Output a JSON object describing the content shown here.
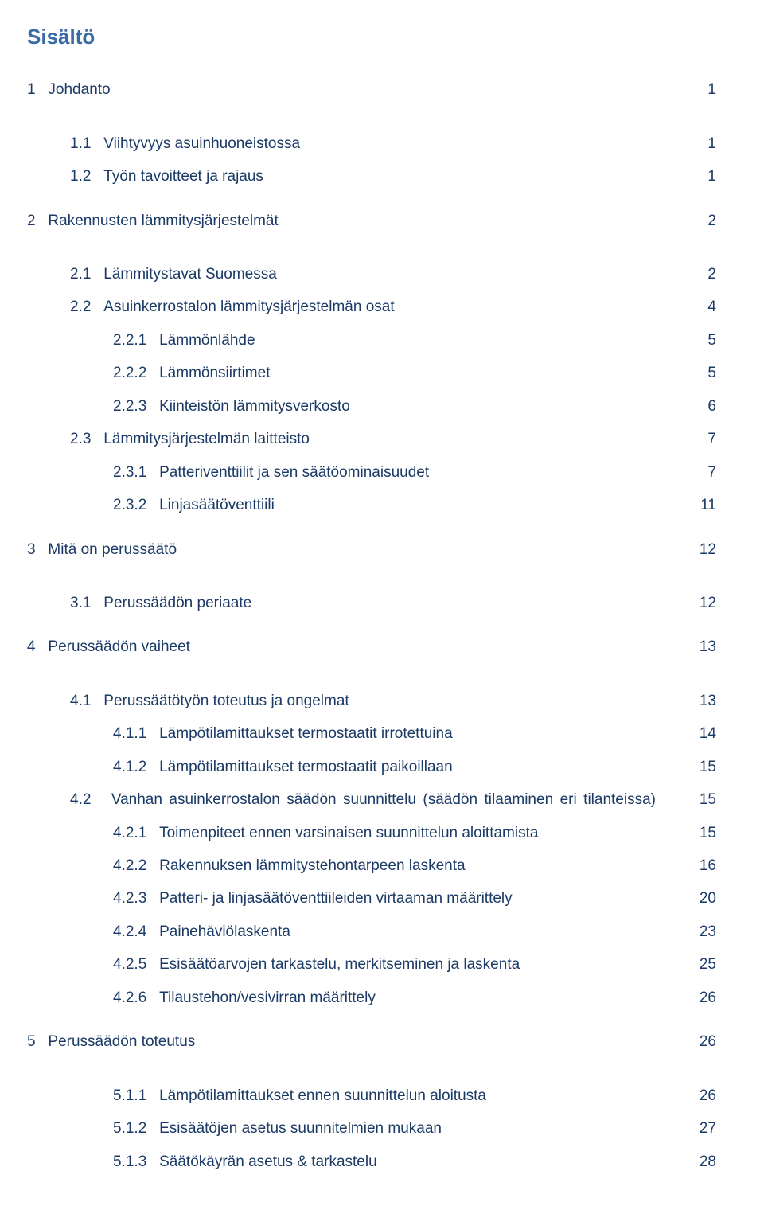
{
  "colors": {
    "title": "#3b6ba5",
    "text": "#1b3a66",
    "background": "#ffffff"
  },
  "title": "Sisältö",
  "toc": [
    {
      "level": 1,
      "num": "1",
      "text": "Johdanto",
      "page": "1",
      "gap": "lg"
    },
    {
      "level": 2,
      "num": "1.1",
      "text": "Viihtyvyys asuinhuoneistossa",
      "page": "1",
      "gap": "lg"
    },
    {
      "level": 2,
      "num": "1.2",
      "text": "Työn tavoitteet ja rajaus",
      "page": "1"
    },
    {
      "level": 1,
      "num": "2",
      "text": "Rakennusten lämmitysjärjestelmät",
      "page": "2",
      "gap": "md"
    },
    {
      "level": 2,
      "num": "2.1",
      "text": "Lämmitystavat Suomessa",
      "page": "2",
      "gap": "lg"
    },
    {
      "level": 2,
      "num": "2.2",
      "text": "Asuinkerrostalon lämmitysjärjestelmän osat",
      "page": "4"
    },
    {
      "level": 3,
      "num": "2.2.1",
      "text": "Lämmönlähde",
      "page": "5"
    },
    {
      "level": 3,
      "num": "2.2.2",
      "text": "Lämmönsiirtimet",
      "page": "5"
    },
    {
      "level": 3,
      "num": "2.2.3",
      "text": "Kiinteistön lämmitysverkosto",
      "page": "6"
    },
    {
      "level": 2,
      "num": "2.3",
      "text": "Lämmitysjärjestelmän laitteisto",
      "page": "7"
    },
    {
      "level": 3,
      "num": "2.3.1",
      "text": "Patteriventtiilit ja sen säätöominaisuudet",
      "page": "7"
    },
    {
      "level": 3,
      "num": "2.3.2",
      "text": "Linjasäätöventtiili",
      "page": "11"
    },
    {
      "level": 1,
      "num": "3",
      "text": "Mitä on perussäätö",
      "page": "12",
      "gap": "md"
    },
    {
      "level": 2,
      "num": "3.1",
      "text": "Perussäädön periaate",
      "page": "12",
      "gap": "lg"
    },
    {
      "level": 1,
      "num": "4",
      "text": "Perussäädön vaiheet",
      "page": "13",
      "gap": "md"
    },
    {
      "level": 2,
      "num": "4.1",
      "text": "Perussäätötyön toteutus ja ongelmat",
      "page": "13",
      "gap": "lg"
    },
    {
      "level": 3,
      "num": "4.1.1",
      "text": "Lämpötilamittaukset termostaatit irrotettuina",
      "page": "14"
    },
    {
      "level": 3,
      "num": "4.1.2",
      "text": "Lämpötilamittaukset termostaatit paikoillaan",
      "page": "15"
    },
    {
      "level": 2,
      "num": "4.2",
      "text": "Vanhan asuinkerrostalon säädön suunnittelu (säädön tilaaminen eri tilanteissa)",
      "page": "15",
      "wide": true
    },
    {
      "level": 3,
      "num": "4.2.1",
      "text": "Toimenpiteet ennen varsinaisen suunnittelun aloittamista",
      "page": "15"
    },
    {
      "level": 3,
      "num": "4.2.2",
      "text": "Rakennuksen lämmitystehontarpeen laskenta",
      "page": "16"
    },
    {
      "level": 3,
      "num": "4.2.3",
      "text": "Patteri- ja linjasäätöventtiileiden virtaaman määrittely",
      "page": "20"
    },
    {
      "level": 3,
      "num": "4.2.4",
      "text": "Painehäviölaskenta",
      "page": "23"
    },
    {
      "level": 3,
      "num": "4.2.5",
      "text": "Esisäätöarvojen tarkastelu, merkitseminen ja laskenta",
      "page": "25"
    },
    {
      "level": 3,
      "num": "4.2.6",
      "text": "Tilaustehon/vesivirran määrittely",
      "page": "26"
    },
    {
      "level": 1,
      "num": "5",
      "text": "Perussäädön toteutus",
      "page": "26",
      "gap": "md"
    },
    {
      "level": 3,
      "num": "5.1.1",
      "text": "Lämpötilamittaukset ennen suunnittelun aloitusta",
      "page": "26",
      "gap": "lg"
    },
    {
      "level": 3,
      "num": "5.1.2",
      "text": "Esisäätöjen asetus suunnitelmien mukaan",
      "page": "27"
    },
    {
      "level": 3,
      "num": "5.1.3",
      "text": "Säätökäyrän asetus & tarkastelu",
      "page": "28"
    }
  ]
}
